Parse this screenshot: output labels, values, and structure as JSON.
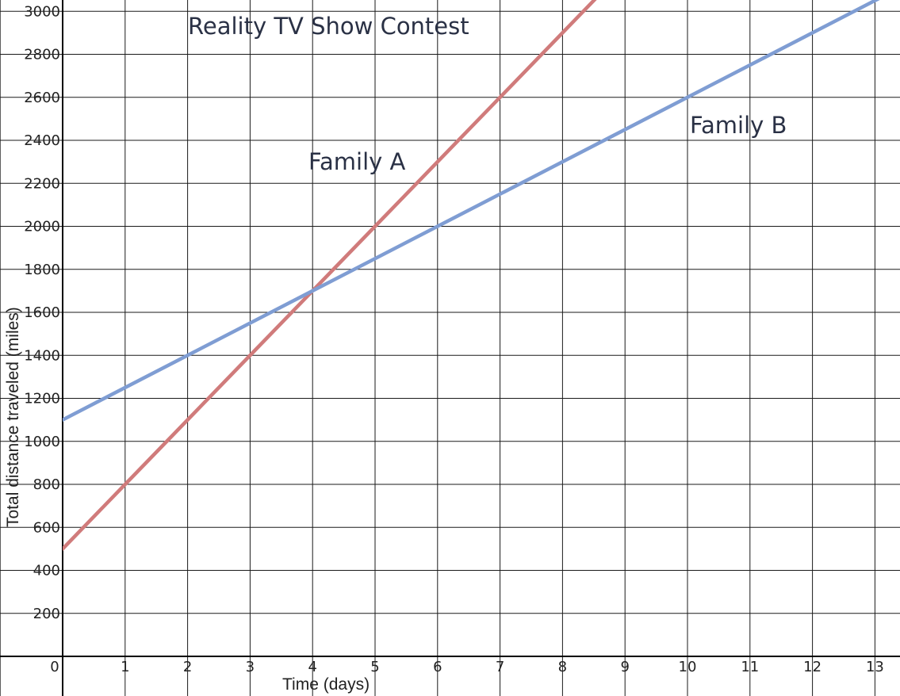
{
  "chart_data": {
    "type": "line",
    "title": "Reality TV Show Contest",
    "xlabel": "Time (days)",
    "ylabel": "Total distance traveled (miles)",
    "xlim": [
      0,
      13
    ],
    "ylim": [
      0,
      3000
    ],
    "x_ticks": [
      1,
      2,
      3,
      4,
      5,
      6,
      7,
      8,
      9,
      10,
      11,
      12,
      13
    ],
    "y_ticks": [
      200,
      400,
      600,
      800,
      1000,
      1200,
      1400,
      1600,
      1800,
      2000,
      2200,
      2400,
      2600,
      2800,
      3000
    ],
    "origin_label": "0",
    "grid": true,
    "series": [
      {
        "name": "Family A",
        "color": "#d07b7b",
        "x": [
          0,
          1,
          2,
          3,
          4,
          5,
          6,
          7,
          8
        ],
        "y": [
          500,
          800,
          1100,
          1400,
          1700,
          2000,
          2300,
          2600,
          2900
        ]
      },
      {
        "name": "Family B",
        "color": "#7f9dd3",
        "x": [
          0,
          2,
          4,
          6,
          8,
          10,
          12
        ],
        "y": [
          1100,
          1400,
          1700,
          2000,
          2300,
          2600,
          2900
        ]
      }
    ]
  }
}
